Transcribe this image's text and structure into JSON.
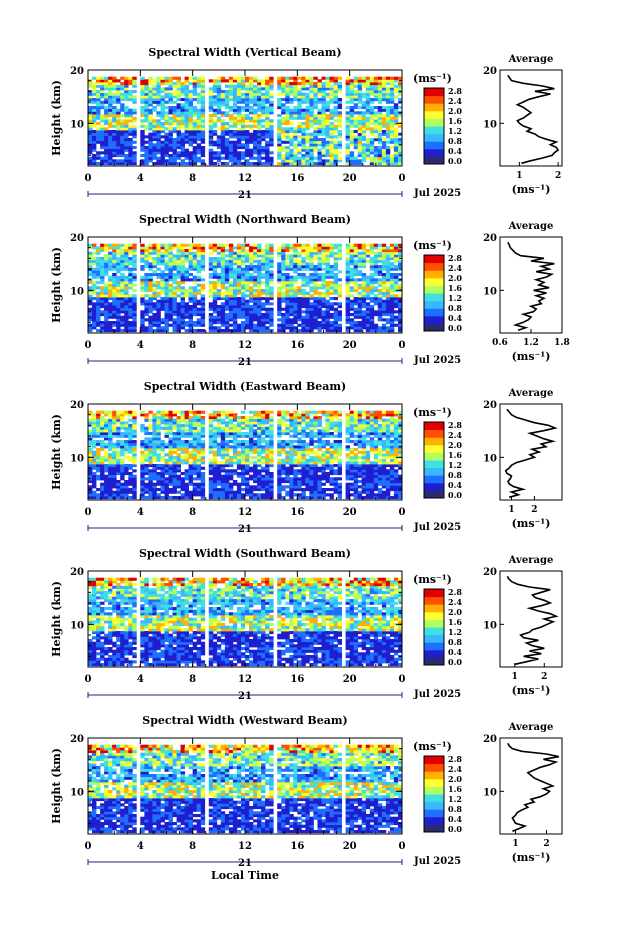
{
  "figure": {
    "x_axis_title": "Local Time",
    "date_day": "21",
    "month_year": "Jul 2025",
    "colorbar_unit": "(ms⁻¹)",
    "colorbar_ticks": [
      "0.0",
      "0.4",
      "0.8",
      "1.2",
      "1.6",
      "2.0",
      "2.4",
      "2.8"
    ],
    "colorbar_colors": [
      "#2a2a6e",
      "#1f1fd0",
      "#1f6fff",
      "#38b8ff",
      "#40e0e0",
      "#b0ff60",
      "#ffff30",
      "#ffb000",
      "#ff5000",
      "#e00000"
    ]
  },
  "chart_data": [
    {
      "type": "heatmap",
      "title": "Spectral Width (Vertical Beam)",
      "ylabel": "Height (km)",
      "xlim": [
        0,
        24
      ],
      "ylim": [
        2,
        20
      ],
      "x_ticks": [
        "0",
        "4",
        "8",
        "12",
        "16",
        "20",
        "0"
      ],
      "y_ticks": [
        "10",
        "20"
      ],
      "profile": {
        "title": "Average",
        "xlabel": "(ms⁻¹)",
        "x_ticks": [
          "1",
          "2"
        ],
        "y_ticks": [
          "10",
          "20"
        ],
        "xlim": [
          0.5,
          2.1
        ],
        "heights": [
          2.5,
          3,
          3.5,
          4,
          4.5,
          5,
          5.5,
          6,
          6.5,
          7,
          7.5,
          8,
          8.5,
          9,
          9.5,
          10,
          10.5,
          11,
          11.5,
          12,
          12.5,
          13,
          13.5,
          14,
          14.5,
          15,
          15.5,
          16,
          16.5,
          17,
          17.5,
          18,
          18.5,
          19
        ],
        "values": [
          1.05,
          1.3,
          1.6,
          1.85,
          1.9,
          2.0,
          1.95,
          1.8,
          1.95,
          1.7,
          1.5,
          1.4,
          1.2,
          1.3,
          1.1,
          1.0,
          0.95,
          1.1,
          1.2,
          1.3,
          1.2,
          1.1,
          0.95,
          1.1,
          1.25,
          1.5,
          1.8,
          1.4,
          1.9,
          1.6,
          1.1,
          0.8,
          0.75,
          0.7
        ]
      }
    },
    {
      "type": "heatmap",
      "title": "Spectral Width (Northward Beam)",
      "ylabel": "Height (km)",
      "xlim": [
        0,
        24
      ],
      "ylim": [
        2,
        20
      ],
      "x_ticks": [
        "0",
        "4",
        "8",
        "12",
        "16",
        "20",
        "0"
      ],
      "y_ticks": [
        "10",
        "20"
      ],
      "profile": {
        "title": "Average",
        "xlabel": "(ms⁻¹)",
        "x_ticks": [
          "0.6",
          "1.2",
          "1.8"
        ],
        "y_ticks": [
          "10",
          "20"
        ],
        "xlim": [
          0.6,
          1.8
        ],
        "heights": [
          2.5,
          3,
          3.5,
          4,
          4.5,
          5,
          5.5,
          6,
          6.5,
          7,
          7.5,
          8,
          8.5,
          9,
          9.5,
          10,
          10.5,
          11,
          11.5,
          12,
          12.5,
          13,
          13.5,
          14,
          14.5,
          15,
          15.5,
          16,
          16.5,
          17,
          17.5,
          18,
          18.5,
          19
        ],
        "values": [
          0.95,
          1.1,
          0.9,
          1.05,
          1.15,
          1.2,
          1.05,
          1.25,
          1.3,
          1.2,
          1.4,
          1.35,
          1.45,
          1.3,
          1.5,
          1.25,
          1.55,
          1.35,
          1.45,
          1.3,
          1.5,
          1.6,
          1.3,
          1.55,
          1.4,
          1.65,
          1.2,
          1.45,
          1.0,
          0.9,
          0.85,
          0.8,
          0.78,
          0.75
        ]
      }
    },
    {
      "type": "heatmap",
      "title": "Spectral Width (Eastward Beam)",
      "ylabel": "Height (km)",
      "xlim": [
        0,
        24
      ],
      "ylim": [
        2,
        20
      ],
      "x_ticks": [
        "0",
        "4",
        "8",
        "12",
        "16",
        "20",
        "0"
      ],
      "y_ticks": [
        "10",
        "20"
      ],
      "profile": {
        "title": "Average",
        "xlabel": "(ms⁻¹)",
        "x_ticks": [
          "1",
          "2"
        ],
        "y_ticks": [
          "10",
          "20"
        ],
        "xlim": [
          0.5,
          3.2
        ],
        "heights": [
          2.5,
          3,
          3.5,
          4,
          4.5,
          5,
          5.5,
          6,
          6.5,
          7,
          7.5,
          8,
          8.5,
          9,
          9.5,
          10,
          10.5,
          11,
          11.5,
          12,
          12.5,
          13,
          13.5,
          14,
          14.5,
          15,
          15.5,
          16,
          16.5,
          17,
          17.5,
          18,
          18.5,
          19
        ],
        "values": [
          0.9,
          1.3,
          1.0,
          1.5,
          1.1,
          0.9,
          0.85,
          0.95,
          1.0,
          0.8,
          0.75,
          0.9,
          1.0,
          1.2,
          1.6,
          2.0,
          1.8,
          2.2,
          1.9,
          2.5,
          2.3,
          2.8,
          2.4,
          2.1,
          1.8,
          2.4,
          2.9,
          2.6,
          2.0,
          1.6,
          1.2,
          1.0,
          0.9,
          0.8
        ]
      }
    },
    {
      "type": "heatmap",
      "title": "Spectral Width (Southward Beam)",
      "ylabel": "Height (km)",
      "xlim": [
        0,
        24
      ],
      "ylim": [
        2,
        20
      ],
      "x_ticks": [
        "0",
        "4",
        "8",
        "12",
        "16",
        "20",
        "0"
      ],
      "y_ticks": [
        "10",
        "20"
      ],
      "profile": {
        "title": "Average",
        "xlabel": "(ms⁻¹)",
        "x_ticks": [
          "1",
          "2"
        ],
        "y_ticks": [
          "10",
          "20"
        ],
        "xlim": [
          0.5,
          2.6
        ],
        "heights": [
          2.5,
          3,
          3.5,
          4,
          4.5,
          5,
          5.5,
          6,
          6.5,
          7,
          7.5,
          8,
          8.5,
          9,
          9.5,
          10,
          10.5,
          11,
          11.5,
          12,
          12.5,
          13,
          13.5,
          14,
          14.5,
          15,
          15.5,
          16,
          16.5,
          17,
          17.5,
          18,
          18.5,
          19
        ],
        "values": [
          1.0,
          1.4,
          1.8,
          1.3,
          1.9,
          1.5,
          2.0,
          1.6,
          1.4,
          1.8,
          1.3,
          1.2,
          1.5,
          1.6,
          1.9,
          2.1,
          2.3,
          2.0,
          2.4,
          2.2,
          1.8,
          1.5,
          1.9,
          2.2,
          2.0,
          1.7,
          1.6,
          1.9,
          2.2,
          1.5,
          1.1,
          0.9,
          0.8,
          0.75
        ]
      }
    },
    {
      "type": "heatmap",
      "title": "Spectral Width (Westward Beam)",
      "ylabel": "Height (km)",
      "xlim": [
        0,
        24
      ],
      "ylim": [
        2,
        20
      ],
      "x_ticks": [
        "0",
        "4",
        "8",
        "12",
        "16",
        "20",
        "0"
      ],
      "y_ticks": [
        "10",
        "20"
      ],
      "profile": {
        "title": "Average",
        "xlabel": "(ms⁻¹)",
        "x_ticks": [
          "1",
          "2"
        ],
        "y_ticks": [
          "10",
          "20"
        ],
        "xlim": [
          0.5,
          2.5
        ],
        "heights": [
          2.5,
          3,
          3.5,
          4,
          4.5,
          5,
          5.5,
          6,
          6.5,
          7,
          7.5,
          8,
          8.5,
          9,
          9.5,
          10,
          10.5,
          11,
          11.5,
          12,
          12.5,
          13,
          13.5,
          14,
          14.5,
          15,
          15.5,
          16,
          16.5,
          17,
          17.5,
          18,
          18.5,
          19
        ],
        "values": [
          0.9,
          1.1,
          1.3,
          1.0,
          0.95,
          0.9,
          1.0,
          1.05,
          1.2,
          1.4,
          1.3,
          1.6,
          1.5,
          1.8,
          2.0,
          2.1,
          1.9,
          2.2,
          2.0,
          1.8,
          1.6,
          1.5,
          1.4,
          1.6,
          1.8,
          2.1,
          2.3,
          1.9,
          2.4,
          2.0,
          1.2,
          0.9,
          0.8,
          0.75
        ]
      }
    }
  ]
}
